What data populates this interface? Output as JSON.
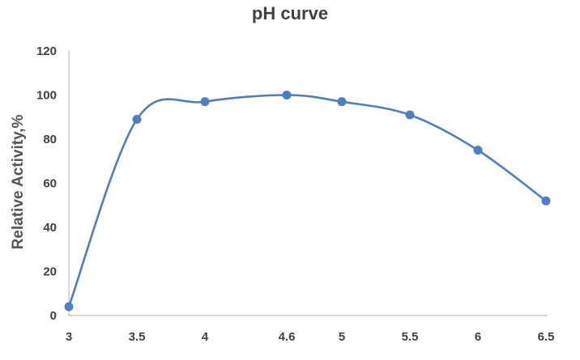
{
  "chart_data": {
    "type": "line",
    "title": "pH curve",
    "xlabel": "",
    "ylabel": "Relative  Activity,%",
    "x": [
      3,
      3.5,
      4,
      4.6,
      5,
      5.5,
      6,
      6.5
    ],
    "x_tick_labels": [
      "3",
      "3.5",
      "4",
      "4.6",
      "5",
      "5.5",
      "6",
      "6.5"
    ],
    "series": [
      {
        "name": "",
        "color": "#4f7fbd",
        "values": [
          4,
          89,
          97,
          100,
          97,
          91,
          75,
          52
        ]
      }
    ],
    "ylim": [
      0,
      120
    ],
    "y_ticks": [
      0,
      20,
      40,
      60,
      80,
      100,
      120
    ],
    "smooth": true,
    "markers": true,
    "grid": false,
    "legend": "none"
  }
}
